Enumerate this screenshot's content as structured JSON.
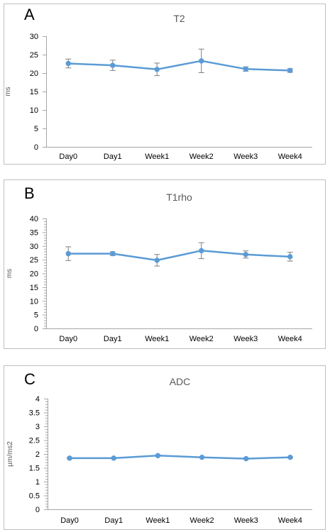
{
  "chart_data": [
    {
      "panel": "A",
      "type": "line",
      "title": "T2",
      "xlabel": "",
      "ylabel": "ms",
      "categories": [
        "Day0",
        "Day1",
        "Week1",
        "Week2",
        "Week3",
        "Week4"
      ],
      "values": [
        22.6,
        22.1,
        21.0,
        23.3,
        21.1,
        20.7
      ],
      "errors": [
        1.2,
        1.4,
        1.7,
        3.2,
        0.6,
        0.5
      ],
      "ylim": [
        0,
        30
      ],
      "yticks": [
        "0",
        "5",
        "10",
        "15",
        "20",
        "25",
        "30"
      ],
      "minor_ticks": false,
      "grid": false,
      "legend": "none",
      "color": "#5b9bd5"
    },
    {
      "panel": "B",
      "type": "line",
      "title": "T1rho",
      "xlabel": "",
      "ylabel": "ms",
      "categories": [
        "Day0",
        "Day1",
        "Week1",
        "Week2",
        "Week3",
        "Week4"
      ],
      "values": [
        27.2,
        27.2,
        24.8,
        28.3,
        26.9,
        26.1
      ],
      "errors": [
        2.5,
        0.7,
        2.1,
        2.9,
        1.3,
        1.6
      ],
      "ylim": [
        0,
        40
      ],
      "yticks": [
        "0",
        "5",
        "10",
        "15",
        "20",
        "25",
        "30",
        "35",
        "40"
      ],
      "minor_ticks": true,
      "grid": false,
      "legend": "none",
      "color": "#5b9bd5"
    },
    {
      "panel": "C",
      "type": "line",
      "title": "ADC",
      "xlabel": "",
      "ylabel": "µm/ms2",
      "categories": [
        "Day0",
        "Day1",
        "Week1",
        "Week2",
        "Week3",
        "Week4"
      ],
      "values": [
        1.85,
        1.85,
        1.94,
        1.88,
        1.83,
        1.88
      ],
      "errors": [
        0.02,
        0.02,
        0.02,
        0.02,
        0.02,
        0.02
      ],
      "ylim": [
        0,
        4
      ],
      "yticks": [
        "0",
        "0.5",
        "1",
        "1.5",
        "2",
        "2.5",
        "3",
        "3.5",
        "4"
      ],
      "minor_ticks": true,
      "grid": false,
      "legend": "none",
      "color": "#5b9bd5"
    }
  ]
}
